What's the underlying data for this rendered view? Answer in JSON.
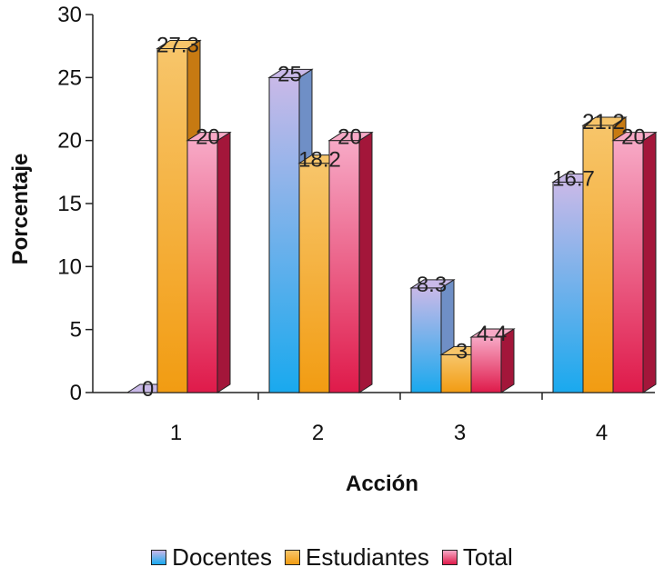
{
  "chart_data": {
    "type": "bar",
    "categories": [
      "1",
      "2",
      "3",
      "4"
    ],
    "series": [
      {
        "name": "Docentes",
        "values": [
          0,
          25,
          8.3,
          16.7
        ]
      },
      {
        "name": "Estudiantes",
        "values": [
          27.3,
          18.2,
          3,
          21.2
        ]
      },
      {
        "name": "Total",
        "values": [
          20,
          20,
          4.4,
          20
        ]
      }
    ],
    "data_labels": [
      [
        "0",
        "25",
        "8.3",
        "16.7"
      ],
      [
        "27.3",
        "18.2",
        "3",
        "21.2"
      ],
      [
        "20",
        "20",
        "4.4",
        "20"
      ]
    ],
    "xlabel": "Acción",
    "ylabel": "Porcentaje",
    "ylim": [
      0,
      30
    ],
    "yticks": [
      "0",
      "5",
      "10",
      "15",
      "20",
      "25",
      "30"
    ],
    "grid": false,
    "legend_position": "bottom",
    "colors": {
      "Docentes": {
        "top": "#c9b9e8",
        "bottom": "#19a9ee",
        "side": "#6f8fc6"
      },
      "Estudiantes": {
        "top": "#f7c56a",
        "bottom": "#f29c12",
        "side": "#c77a12"
      },
      "Total": {
        "top": "#f7a9c6",
        "bottom": "#df1a4a",
        "side": "#a3163a"
      }
    }
  }
}
